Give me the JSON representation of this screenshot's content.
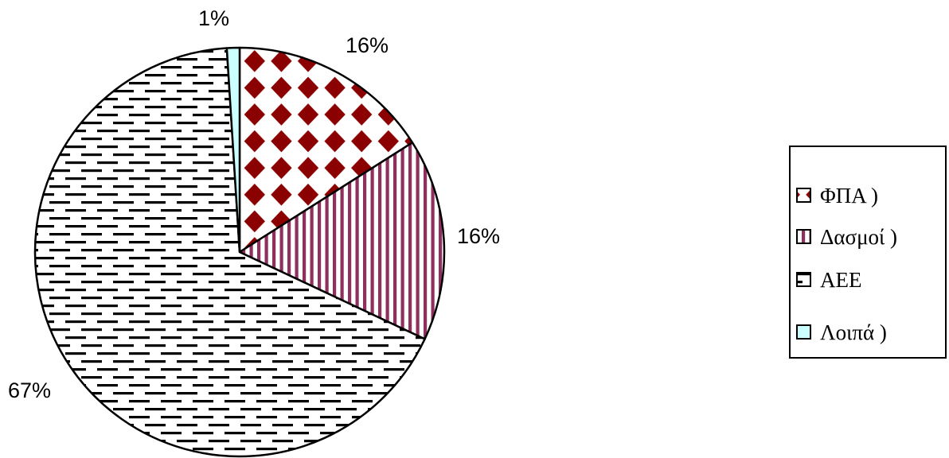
{
  "chart_data": {
    "type": "pie",
    "slices": [
      {
        "label": "ΦΠΑ )",
        "value": 16,
        "data_label": "16%",
        "pattern": "diamonds",
        "color": "#8B0000"
      },
      {
        "label": "Δασμοί )",
        "value": 16,
        "data_label": "16%",
        "pattern": "vertical-stripes",
        "color": "#8E2F5E"
      },
      {
        "label": "ΑΕΕ",
        "value": 67,
        "data_label": "67%",
        "pattern": "dashes",
        "color": "#000000"
      },
      {
        "label": "Λοιπά )",
        "value": 1,
        "data_label": "1%",
        "pattern": "solid",
        "color": "#CCFFFF"
      }
    ],
    "legend_position": "right"
  }
}
